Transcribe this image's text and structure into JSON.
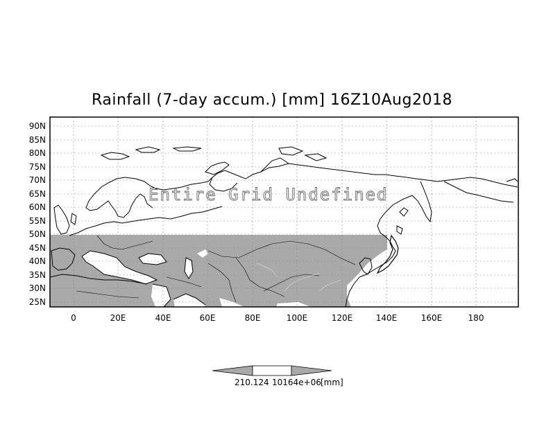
{
  "map": {
    "title": "Rainfall (7-day accum.) [mm] 16Z10Aug2018",
    "overlay_text": "Entire Grid Undefined",
    "lon_ticks": [
      "0",
      "20E",
      "40E",
      "60E",
      "80E",
      "100E",
      "120E",
      "140E",
      "160E",
      "180"
    ],
    "lat_ticks": [
      "90N",
      "85N",
      "80N",
      "75N",
      "70N",
      "65N",
      "60N",
      "55N",
      "50N",
      "45N",
      "40N",
      "35N",
      "30N",
      "25N"
    ],
    "land_fill_color": "#a9a9a9",
    "colorbar": {
      "labels": [
        "210.124",
        "10164e+06",
        "[mm]"
      ],
      "left_color": "#a9a9a9",
      "right_color": "#a9a9a9"
    }
  }
}
